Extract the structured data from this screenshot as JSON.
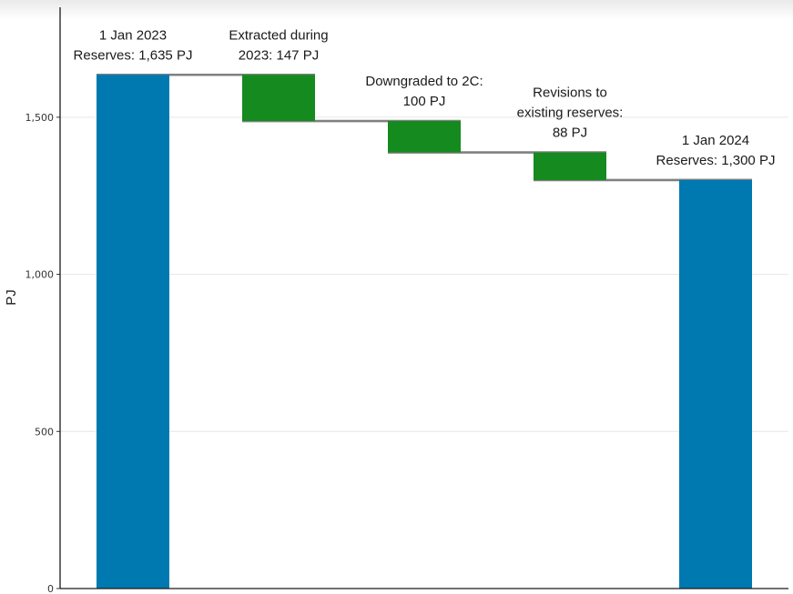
{
  "chart_data": {
    "type": "waterfall",
    "title": "",
    "xlabel": "",
    "ylabel": "PJ",
    "ylim": [
      0,
      1850
    ],
    "yticks": [
      0,
      500,
      1000,
      1500
    ],
    "ytick_labels": [
      "0",
      "500",
      "1,000",
      "1,500"
    ],
    "grid": "horizontal",
    "legend": "none",
    "colors": {
      "total": "#0078B0",
      "decrease": "#148A1F",
      "connector": "#808080"
    },
    "steps": [
      {
        "kind": "total",
        "start": 0,
        "end": 1635,
        "label": [
          "1 Jan 2023",
          "Reserves: 1,635 PJ"
        ]
      },
      {
        "kind": "decrease",
        "start": 1635,
        "end": 1488,
        "label": [
          "Extracted during",
          "2023: 147 PJ"
        ]
      },
      {
        "kind": "decrease",
        "start": 1488,
        "end": 1388,
        "label": [
          "Downgraded to 2C:",
          "100 PJ"
        ]
      },
      {
        "kind": "decrease",
        "start": 1388,
        "end": 1300,
        "label": [
          "Revisions to",
          "existing reserves:",
          "88 PJ"
        ]
      },
      {
        "kind": "total",
        "start": 0,
        "end": 1300,
        "label": [
          "1 Jan 2024",
          "Reserves: 1,300 PJ"
        ]
      }
    ]
  }
}
